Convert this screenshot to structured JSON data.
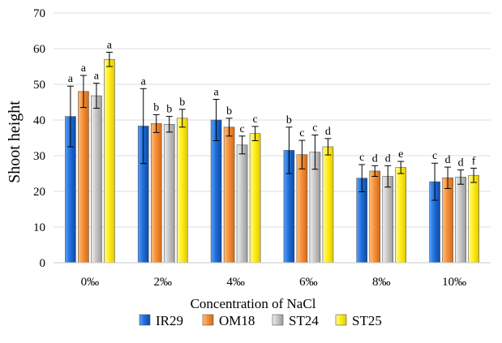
{
  "chart_data": {
    "type": "bar",
    "title": "",
    "xlabel": "Concentration of NaCl",
    "ylabel": "Shoot height",
    "ylim": [
      0,
      70
    ],
    "yticks": [
      0,
      10,
      20,
      30,
      40,
      50,
      60,
      70
    ],
    "grid": true,
    "legend_position": "bottom",
    "categories": [
      "0‰",
      "2‰",
      "4‰",
      "6‰",
      "8‰",
      "10‰"
    ],
    "series": [
      {
        "name": "IR29",
        "color": "#1f6fd8",
        "values": [
          41,
          38.3,
          40,
          31.5,
          23.7,
          22.7
        ],
        "errors": [
          8.5,
          10.5,
          5.8,
          6.5,
          3.8,
          5.2
        ],
        "letters": [
          "a",
          "a",
          "a",
          "b",
          "c",
          "c"
        ]
      },
      {
        "name": "OM18",
        "color": "#f5903a",
        "values": [
          48,
          39,
          38,
          30.3,
          25.7,
          23.8
        ],
        "errors": [
          4.5,
          2.5,
          2.5,
          4.0,
          1.5,
          3.0
        ],
        "letters": [
          "a",
          "b",
          "b",
          "c",
          "d",
          "d"
        ]
      },
      {
        "name": "ST24",
        "color": "#c8c8c8",
        "values": [
          46.8,
          38.8,
          33,
          31,
          24.2,
          24
        ],
        "errors": [
          3.5,
          2.2,
          2.5,
          4.8,
          3.0,
          2.0
        ],
        "letters": [
          "a",
          "b",
          "c",
          "c",
          "d",
          "d"
        ]
      },
      {
        "name": "ST25",
        "color": "#ffee1a",
        "values": [
          57,
          40.5,
          36.2,
          32.5,
          26.7,
          24.5
        ],
        "errors": [
          2.0,
          2.5,
          2.0,
          2.3,
          1.7,
          2.0
        ],
        "letters": [
          "a",
          "b",
          "c",
          "d",
          "e",
          "f"
        ]
      }
    ]
  }
}
